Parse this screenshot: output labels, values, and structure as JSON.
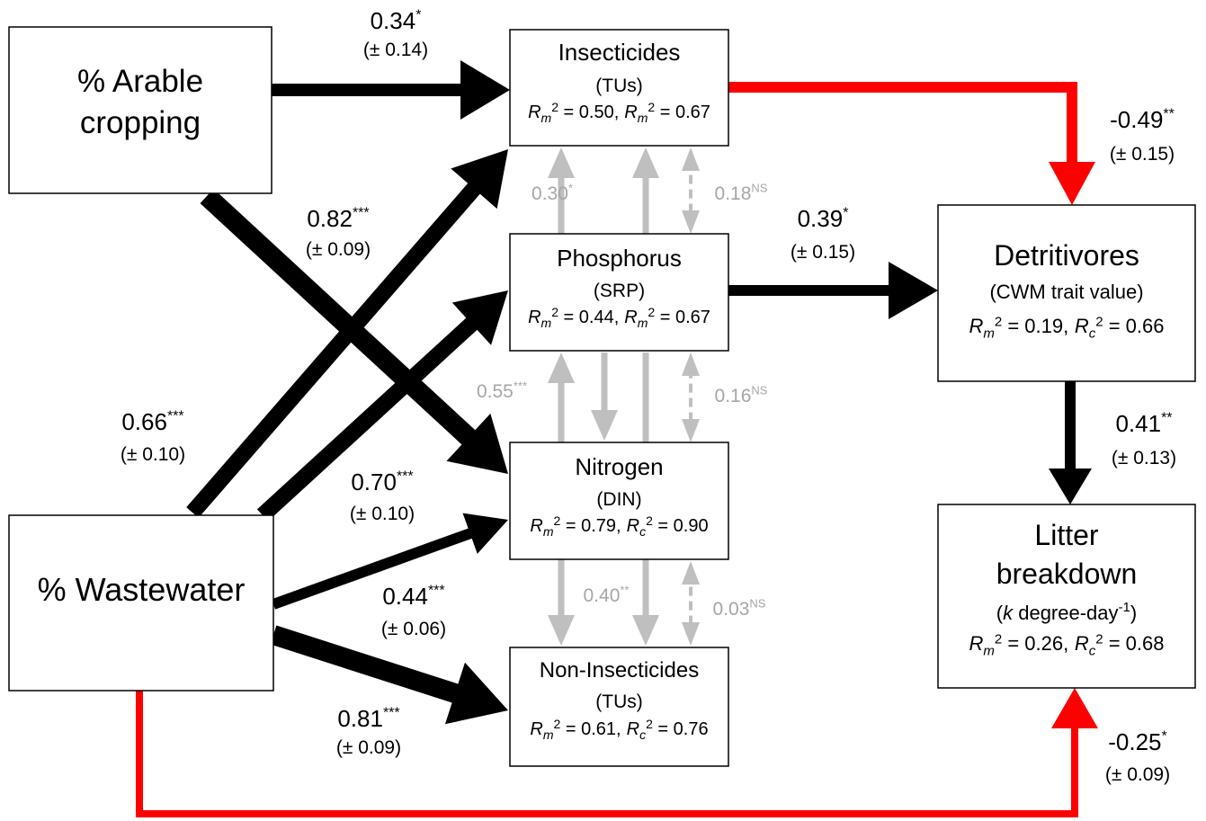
{
  "boxes": {
    "arable": {
      "lines": [
        "% Arable",
        "cropping"
      ]
    },
    "wastewater": {
      "lines": [
        "% Wastewater"
      ]
    },
    "insecticides": {
      "title": "Insecticides",
      "subtitle": "(TUs)",
      "stats": [
        {
          "symbol": "R",
          "sub": "m",
          "sup": "2",
          "rest": " = 0.50,"
        },
        {
          "symbol": "R",
          "sub": "m",
          "sup": "2",
          "rest": " = 0.67"
        }
      ]
    },
    "phosphorus": {
      "title": "Phosphorus",
      "subtitle": "(SRP)",
      "stats": [
        {
          "symbol": "R",
          "sub": "m",
          "sup": "2",
          "rest": " = 0.44,"
        },
        {
          "symbol": "R",
          "sub": "m",
          "sup": "2",
          "rest": " = 0.67"
        }
      ]
    },
    "nitrogen": {
      "title": "Nitrogen",
      "subtitle": "(DIN)",
      "stats": [
        {
          "symbol": "R",
          "sub": "m",
          "sup": "2",
          "rest": " = 0.79,"
        },
        {
          "symbol": "R",
          "sub": "c",
          "sup": "2",
          "rest": " = 0.90"
        }
      ]
    },
    "noninsecticides": {
      "title": "Non-Insecticides",
      "subtitle": "(TUs)",
      "stats": [
        {
          "symbol": "R",
          "sub": "m",
          "sup": "2",
          "rest": " = 0.61,"
        },
        {
          "symbol": "R",
          "sub": "c",
          "sup": "2",
          "rest": " = 0.76"
        }
      ]
    },
    "detritivores": {
      "title": "Detritivores",
      "subtitle": "(CWM trait value)",
      "stats": [
        {
          "symbol": "R",
          "sub": "m",
          "sup": "2",
          "rest": " = 0.19,"
        },
        {
          "symbol": "R",
          "sub": "c",
          "sup": "2",
          "rest": " = 0.66"
        }
      ]
    },
    "litter": {
      "lines": [
        "Litter",
        "breakdown"
      ],
      "unit": {
        "open": "(",
        "var": "k",
        "text": " degree-day",
        "sup": "-1",
        "close": ")"
      },
      "stats": [
        {
          "symbol": "R",
          "sub": "m",
          "sup": "2",
          "rest": " = 0.26,"
        },
        {
          "symbol": "R",
          "sub": "c",
          "sup": "2",
          "rest": " = 0.68"
        }
      ]
    }
  },
  "edges": [
    {
      "coef": "0.34",
      "sig": "*",
      "se": "(± 0.14)"
    },
    {
      "coef": "0.82",
      "sig": "***",
      "se": "(± 0.09)"
    },
    {
      "coef": "0.66",
      "sig": "***",
      "se": "(± 0.10)"
    },
    {
      "coef": "0.70",
      "sig": "***",
      "se": "(± 0.10)"
    },
    {
      "coef": "0.44",
      "sig": "***",
      "se": "(± 0.06)"
    },
    {
      "coef": "0.81",
      "sig": "***",
      "se": "(± 0.09)"
    },
    {
      "coef": "0.39",
      "sig": "*",
      "se": "(± 0.15)"
    },
    {
      "coef": "-0.49",
      "sig": "**",
      "se": "(± 0.15)"
    },
    {
      "coef": "0.41",
      "sig": "**",
      "se": "(± 0.13)"
    },
    {
      "coef": "-0.25",
      "sig": "*",
      "se": "(± 0.09)"
    }
  ],
  "correlations": [
    {
      "coef": "0.30",
      "sig": "*"
    },
    {
      "coef": "0.18",
      "sig": "NS"
    },
    {
      "coef": "0.55",
      "sig": "***"
    },
    {
      "coef": "0.16",
      "sig": "NS"
    },
    {
      "coef": "0.40",
      "sig": "**"
    },
    {
      "coef": "0.03",
      "sig": "NS"
    }
  ]
}
